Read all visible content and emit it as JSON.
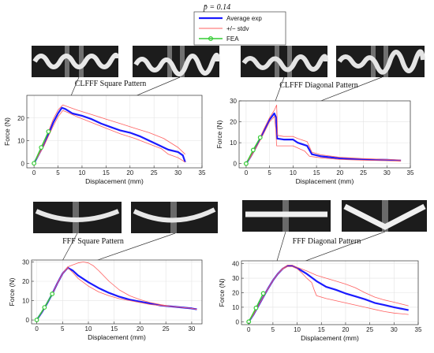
{
  "suptitle": "p̄ = 0.14",
  "legend": {
    "placement": "top-center",
    "entries": [
      {
        "label": "Average exp",
        "color": "#1a1aff"
      },
      {
        "label": "+/− stdv",
        "color": "#ff6060"
      },
      {
        "label": "FEA",
        "color": "#33cc33"
      }
    ]
  },
  "photo_icons": [
    "specimen-photo-icon"
  ],
  "chart_data": [
    {
      "type": "line",
      "title": "CLFFF Square Pattern",
      "xlabel": "Displacement (mm)",
      "ylabel": "Force (N)",
      "xlim": [
        -1.5,
        35
      ],
      "ylim": [
        -2,
        30
      ],
      "xticks": [
        0,
        5,
        10,
        15,
        20,
        25,
        30,
        35
      ],
      "yticks": [
        0,
        10,
        20
      ],
      "grid": true,
      "series": [
        {
          "name": "Average exp",
          "color": "#1a1aff",
          "width": 2.2,
          "x": [
            0,
            1,
            2,
            3,
            4,
            5,
            5.8,
            6.5,
            8,
            10,
            12,
            14,
            16,
            18,
            20,
            22,
            24,
            26,
            27.5,
            28,
            30,
            31,
            31.5
          ],
          "y": [
            0,
            4,
            8,
            13,
            18,
            22,
            24.5,
            24,
            22,
            21,
            19.5,
            17.5,
            16,
            14.5,
            13.5,
            12,
            10,
            8,
            6.5,
            6,
            5,
            3.5,
            0.5
          ]
        },
        {
          "name": "+/− stdv",
          "color": "#ff6060",
          "width": 0.8,
          "x": [
            0,
            1,
            2,
            3,
            4,
            5,
            6,
            7,
            9,
            12,
            15,
            18,
            21,
            24,
            27,
            30,
            31.5
          ],
          "y": [
            0,
            4.3,
            8.6,
            14,
            19.5,
            23.5,
            25.8,
            25,
            23.5,
            21.5,
            19.5,
            17.5,
            15.5,
            13.5,
            11,
            7,
            4
          ]
        },
        {
          "name": "+/− stdv",
          "color": "#ff6060",
          "width": 0.8,
          "x": [
            0,
            1,
            2,
            3,
            4,
            5,
            6,
            7,
            9,
            12,
            15,
            18,
            21,
            24,
            26.5,
            28,
            30,
            31.5
          ],
          "y": [
            0,
            3.7,
            7.4,
            12,
            16.5,
            20.5,
            23.3,
            22.5,
            20.5,
            18,
            15.5,
            13,
            11,
            8.5,
            6.5,
            4,
            2.5,
            0.5
          ]
        },
        {
          "name": "FEA",
          "color": "#33cc33",
          "width": 1.4,
          "markers": true,
          "x": [
            0,
            1.5,
            3
          ],
          "y": [
            0,
            7,
            14
          ]
        }
      ]
    },
    {
      "type": "line",
      "title": "CLFFF Diagonal Pattern",
      "xlabel": "Displacement (mm)",
      "ylabel": "Force (N)",
      "xlim": [
        -1.5,
        35
      ],
      "ylim": [
        -2,
        30
      ],
      "xticks": [
        0,
        5,
        10,
        15,
        20,
        25,
        30,
        35
      ],
      "yticks": [
        0,
        10,
        20,
        30
      ],
      "grid": true,
      "series": [
        {
          "name": "Average exp",
          "color": "#1a1aff",
          "width": 2.2,
          "x": [
            0,
            1,
            2,
            3,
            4,
            5,
            6,
            6.4,
            6.6,
            8,
            10,
            11,
            13,
            14,
            16,
            20,
            25,
            30,
            33
          ],
          "y": [
            0,
            3.5,
            7.5,
            12,
            16.5,
            21,
            24,
            22,
            12,
            11.5,
            11.5,
            10,
            8.5,
            4.5,
            3.5,
            2.5,
            2,
            1.8,
            1.5
          ]
        },
        {
          "name": "+/− stdv",
          "color": "#ff6060",
          "width": 0.8,
          "x": [
            0,
            1,
            2,
            3,
            4,
            5,
            6,
            6.5,
            6.7,
            8,
            10,
            11,
            13,
            14,
            16,
            20,
            25,
            30,
            33
          ],
          "y": [
            0,
            3.8,
            8,
            12.8,
            17.5,
            22,
            25.5,
            28,
            13.5,
            13,
            13,
            12,
            10.5,
            5.5,
            4.2,
            3,
            2.4,
            2,
            1.7
          ]
        },
        {
          "name": "+/− stdv",
          "color": "#ff6060",
          "width": 0.8,
          "x": [
            0,
            1,
            2,
            3,
            4,
            5,
            6,
            6.3,
            6.5,
            8,
            10,
            11,
            12.5,
            13.5,
            16,
            20,
            25,
            30,
            33
          ],
          "y": [
            0,
            3.2,
            7,
            11.2,
            15.5,
            20,
            22.5,
            17,
            8.5,
            8.5,
            8.5,
            7.5,
            6,
            3.5,
            2.8,
            2,
            1.6,
            1.4,
            1.2
          ]
        },
        {
          "name": "FEA",
          "color": "#33cc33",
          "width": 1.4,
          "markers": true,
          "x": [
            0,
            1.5,
            3
          ],
          "y": [
            0,
            6.5,
            12.5
          ]
        }
      ]
    },
    {
      "type": "line",
      "title": "FFF Square Pattern",
      "xlabel": "Displacement (mm)",
      "ylabel": "Force (N)",
      "xlim": [
        -1,
        32
      ],
      "ylim": [
        -2,
        31
      ],
      "xticks": [
        0,
        5,
        10,
        15,
        20,
        25,
        30
      ],
      "yticks": [
        0,
        10,
        20,
        30
      ],
      "grid": true,
      "series": [
        {
          "name": "Average exp",
          "color": "#1a1aff",
          "width": 2.2,
          "x": [
            0,
            1,
            2,
            3,
            4,
            5,
            6,
            7,
            8,
            10,
            12,
            14,
            16,
            18,
            20,
            22,
            24,
            26,
            28,
            30,
            31
          ],
          "y": [
            0,
            4,
            8.5,
            13.5,
            19,
            24,
            27,
            25.5,
            23,
            19.5,
            16.5,
            14,
            12,
            10.5,
            9.5,
            8.5,
            7.5,
            7,
            6.5,
            6,
            5.5
          ]
        },
        {
          "name": "+/− stdv",
          "color": "#ff6060",
          "width": 0.8,
          "x": [
            0,
            1,
            2,
            3,
            4,
            5,
            6,
            7,
            8,
            9,
            10,
            11,
            12,
            14,
            16,
            18,
            20,
            22,
            24,
            26,
            28,
            30,
            31
          ],
          "y": [
            0,
            4,
            8.5,
            13.5,
            19,
            24,
            27.5,
            28.5,
            29.5,
            30,
            29.5,
            28,
            25.5,
            20,
            15.5,
            12.5,
            10.5,
            9,
            8,
            7,
            6.5,
            6,
            5.5
          ]
        },
        {
          "name": "+/− stdv",
          "color": "#ff6060",
          "width": 0.8,
          "x": [
            0,
            1,
            2,
            3,
            4,
            5,
            6,
            7,
            8,
            10,
            12,
            14,
            16,
            18,
            20,
            22,
            24,
            26,
            28,
            30,
            31
          ],
          "y": [
            0,
            4,
            8.5,
            13.5,
            19,
            24,
            27,
            24.5,
            21.5,
            17.5,
            14.5,
            12.5,
            11,
            10,
            9,
            8,
            7.5,
            7,
            6.5,
            6,
            5.5
          ]
        },
        {
          "name": "FEA",
          "color": "#33cc33",
          "width": 1.4,
          "markers": true,
          "x": [
            0,
            1.5,
            3
          ],
          "y": [
            0,
            6.5,
            13.5
          ]
        }
      ]
    },
    {
      "type": "line",
      "title": "FFF Diagonal Pattern",
      "xlabel": "Displacement (mm)",
      "ylabel": "Force (N)",
      "xlim": [
        -1.5,
        35
      ],
      "ylim": [
        -2,
        42
      ],
      "xticks": [
        0,
        5,
        10,
        15,
        20,
        25,
        30,
        35
      ],
      "yticks": [
        0,
        10,
        20,
        30,
        40
      ],
      "grid": true,
      "series": [
        {
          "name": "Average exp",
          "color": "#1a1aff",
          "width": 2.2,
          "x": [
            0,
            1,
            2,
            3,
            4,
            5,
            6,
            7,
            8,
            9,
            10,
            12,
            14,
            16,
            18,
            20,
            22,
            24,
            26,
            28,
            30,
            33
          ],
          "y": [
            0,
            5,
            11,
            17,
            23,
            28.5,
            33,
            36.5,
            38.5,
            38.5,
            37,
            33,
            28,
            24,
            22,
            19.5,
            17.5,
            15.5,
            13,
            11.5,
            10,
            8
          ]
        },
        {
          "name": "+/− stdv",
          "color": "#ff6060",
          "width": 0.8,
          "x": [
            0,
            1,
            2,
            3,
            4,
            5,
            6,
            7,
            8,
            9,
            10,
            12,
            14,
            16,
            18,
            20,
            22,
            24,
            26,
            28,
            30,
            33
          ],
          "y": [
            0,
            5,
            11,
            17,
            23,
            28.5,
            33,
            36.8,
            39,
            39,
            37.5,
            35,
            32,
            30,
            28,
            26,
            23.5,
            20,
            17,
            15,
            13.5,
            11
          ]
        },
        {
          "name": "+/− stdv",
          "color": "#ff6060",
          "width": 0.8,
          "x": [
            0,
            1,
            2,
            3,
            4,
            5,
            6,
            7,
            8,
            9,
            10,
            11,
            12,
            13,
            13.5,
            14,
            16,
            18,
            20,
            22,
            24,
            26,
            28,
            30,
            33
          ],
          "y": [
            0,
            5,
            11,
            17,
            23,
            28.5,
            33,
            36.3,
            38,
            38,
            36.5,
            33.5,
            30,
            27,
            22,
            18,
            16,
            14.5,
            13,
            11.5,
            10,
            8.5,
            7,
            6,
            5
          ]
        },
        {
          "name": "FEA",
          "color": "#33cc33",
          "width": 1.4,
          "markers": true,
          "x": [
            0,
            1.5,
            3
          ],
          "y": [
            0,
            9.5,
            19.5
          ]
        }
      ]
    }
  ]
}
